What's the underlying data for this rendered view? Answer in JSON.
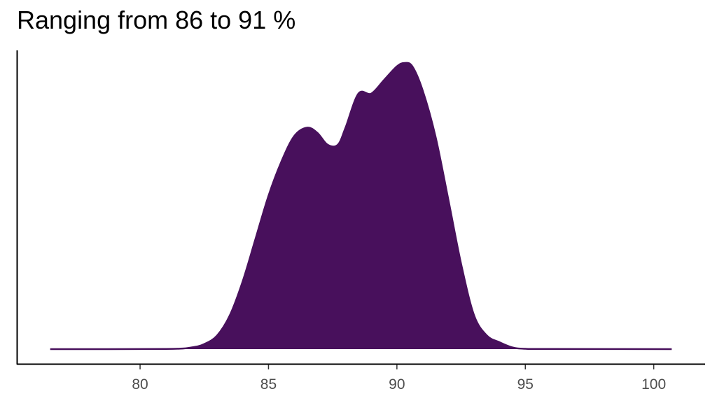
{
  "chart_data": {
    "type": "area",
    "title": "Ranging from 86 to 91 %",
    "xlabel": "",
    "ylabel": "",
    "xlim": [
      75.2,
      102
    ],
    "ylim": [
      0,
      0.168
    ],
    "grid": false,
    "legend": "none",
    "xticks": [
      80,
      85,
      90,
      95,
      100
    ],
    "xtick_labels": [
      "80",
      "85",
      "90",
      "95",
      "100"
    ],
    "fill_color": "#48105c",
    "x": [
      76.5,
      81,
      82,
      82.5,
      83,
      83.5,
      84,
      84.5,
      85,
      85.5,
      86,
      86.5,
      86.9,
      87.3,
      87.7,
      88,
      88.5,
      89,
      89.5,
      90,
      90.3,
      90.6,
      91,
      91.5,
      92,
      92.5,
      93,
      93.5,
      94,
      94.5,
      95,
      96,
      100.7
    ],
    "y": [
      0,
      0.0001,
      0.001,
      0.003,
      0.008,
      0.02,
      0.04,
      0.065,
      0.09,
      0.11,
      0.125,
      0.13,
      0.127,
      0.12,
      0.12,
      0.13,
      0.15,
      0.15,
      0.158,
      0.166,
      0.168,
      0.166,
      0.152,
      0.125,
      0.088,
      0.05,
      0.02,
      0.008,
      0.004,
      0.001,
      0.0002,
      0.0001,
      0
    ]
  }
}
